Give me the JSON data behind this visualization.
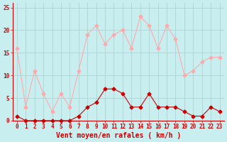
{
  "x": [
    0,
    1,
    2,
    3,
    4,
    5,
    6,
    7,
    8,
    9,
    10,
    11,
    12,
    13,
    14,
    15,
    16,
    17,
    18,
    19,
    20,
    21,
    22,
    23
  ],
  "avg_wind": [
    1,
    0,
    0,
    0,
    0,
    0,
    0,
    1,
    3,
    4,
    7,
    7,
    6,
    3,
    3,
    6,
    3,
    3,
    3,
    2,
    1,
    1,
    3,
    2
  ],
  "gust_wind": [
    16,
    3,
    11,
    6,
    2,
    6,
    3,
    11,
    19,
    21,
    17,
    19,
    20,
    16,
    23,
    21,
    16,
    21,
    18,
    10,
    11,
    13,
    14,
    14
  ],
  "avg_color": "#cc0000",
  "gust_color": "#ffaaaa",
  "bg_color": "#c8eef0",
  "grid_color": "#aacccc",
  "xlabel": "Vent moyen/en rafales ( km/h )",
  "yticks": [
    0,
    5,
    10,
    15,
    20,
    25
  ],
  "ylim": [
    0,
    26
  ],
  "xlim": [
    -0.5,
    23.5
  ],
  "markersize": 2.5,
  "linewidth": 0.8,
  "tick_fontsize": 5.5,
  "xlabel_fontsize": 7
}
